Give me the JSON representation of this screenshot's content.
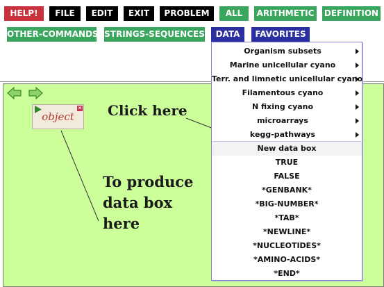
{
  "toolbar": {
    "buttons": [
      {
        "label": "HELP!",
        "color": "#c8323c"
      },
      {
        "label": "FILE",
        "color": "#000000"
      },
      {
        "label": "EDIT",
        "color": "#000000"
      },
      {
        "label": "EXIT",
        "color": "#000000"
      },
      {
        "label": "PROBLEM",
        "color": "#000000"
      },
      {
        "label": "ALL",
        "color": "#3aa55c"
      },
      {
        "label": "ARITHMETIC",
        "color": "#3aa55c"
      },
      {
        "label": "DEFINITION",
        "color": "#3aa55c"
      },
      {
        "label": "OTHER-COMMANDS",
        "color": "#3aa55c"
      },
      {
        "label": "STRINGS-SEQUENCES",
        "color": "#3aa55c"
      },
      {
        "label": "DATA",
        "color": "#2b2fa0"
      },
      {
        "label": "FAVORITES",
        "color": "#2b2fa0"
      }
    ]
  },
  "workspace": {
    "background": "#ccff99",
    "object_label": "object",
    "nav_icons": [
      "back-arrow-icon",
      "forward-arrow-icon"
    ]
  },
  "annotations": {
    "click_here": "Click here",
    "produce": [
      "To produce",
      "data box",
      "here"
    ]
  },
  "data_menu": {
    "submenus": [
      "Organism subsets",
      "Marine unicellular cyano",
      "Terr. and limnetic unicellular cyano",
      "Filamentous cyano",
      "N fixing cyano",
      "microarrays",
      "kegg-pathways"
    ],
    "items": [
      "New data box",
      "TRUE",
      "FALSE",
      "*GENBANK*",
      "*BIG-NUMBER*",
      "*TAB*",
      "*NEWLINE*",
      "*NUCLEOTIDES*",
      "*AMINO-ACIDS*",
      "*END*"
    ]
  }
}
